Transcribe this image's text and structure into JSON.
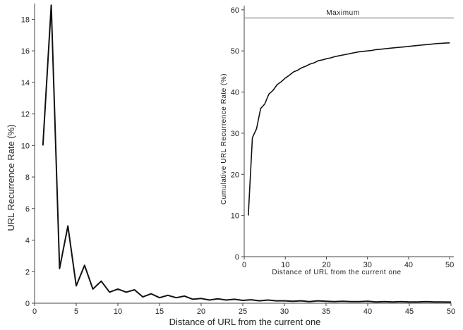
{
  "chart_data": [
    {
      "type": "line",
      "xlabel": "Distance of URL from the current one",
      "ylabel": "URL Recurrence Rate (%)",
      "xlim": [
        0,
        50
      ],
      "ylim": [
        0,
        19
      ],
      "xticks": [
        0,
        5,
        10,
        15,
        20,
        25,
        30,
        35,
        40,
        45,
        50
      ],
      "yticks": [
        0,
        2,
        4,
        6,
        8,
        10,
        12,
        14,
        16,
        18
      ],
      "grid": false,
      "series": [
        {
          "x": [
            1,
            2,
            3,
            4,
            5,
            6,
            7,
            8,
            9,
            10,
            11,
            12,
            13,
            14,
            15,
            16,
            17,
            18,
            19,
            20,
            21,
            22,
            23,
            24,
            25,
            26,
            27,
            28,
            29,
            30,
            31,
            32,
            33,
            34,
            35,
            36,
            37,
            38,
            39,
            40,
            41,
            42,
            43,
            44,
            45,
            46,
            47,
            48,
            49,
            50
          ],
          "values": [
            10.0,
            18.9,
            2.2,
            4.9,
            1.1,
            2.4,
            0.9,
            1.4,
            0.7,
            0.9,
            0.7,
            0.85,
            0.4,
            0.6,
            0.35,
            0.5,
            0.35,
            0.45,
            0.25,
            0.3,
            0.2,
            0.28,
            0.2,
            0.25,
            0.18,
            0.22,
            0.15,
            0.2,
            0.15,
            0.15,
            0.12,
            0.15,
            0.1,
            0.15,
            0.12,
            0.1,
            0.12,
            0.1,
            0.1,
            0.12,
            0.08,
            0.1,
            0.08,
            0.1,
            0.08,
            0.08,
            0.1,
            0.08,
            0.08,
            0.07
          ]
        }
      ]
    },
    {
      "type": "line",
      "xlabel": "Distance of URL from the current one",
      "ylabel": "Cumulative URL Recurrence Rate (%)",
      "xlim": [
        0,
        51
      ],
      "ylim": [
        0,
        61
      ],
      "xticks": [
        0,
        10,
        20,
        30,
        40,
        50
      ],
      "yticks": [
        0,
        10,
        20,
        30,
        40,
        50,
        60
      ],
      "grid": false,
      "reference_lines": [
        {
          "label": "Maximum",
          "y": 58
        }
      ],
      "series": [
        {
          "x": [
            1,
            2,
            3,
            4,
            5,
            6,
            7,
            8,
            9,
            10,
            11,
            12,
            13,
            14,
            15,
            16,
            17,
            18,
            19,
            20,
            21,
            22,
            23,
            24,
            25,
            26,
            27,
            28,
            29,
            30,
            31,
            32,
            33,
            34,
            35,
            36,
            37,
            38,
            39,
            40,
            41,
            42,
            43,
            44,
            45,
            46,
            47,
            48,
            49,
            50
          ],
          "values": [
            10.0,
            28.9,
            31.1,
            36.0,
            37.1,
            39.5,
            40.4,
            41.8,
            42.5,
            43.4,
            44.1,
            44.9,
            45.3,
            45.9,
            46.3,
            46.8,
            47.1,
            47.6,
            47.8,
            48.1,
            48.3,
            48.6,
            48.8,
            49.0,
            49.2,
            49.4,
            49.6,
            49.8,
            49.9,
            50.0,
            50.1,
            50.3,
            50.4,
            50.5,
            50.6,
            50.7,
            50.8,
            50.9,
            51.0,
            51.1,
            51.2,
            51.3,
            51.4,
            51.5,
            51.6,
            51.7,
            51.8,
            51.85,
            51.9,
            51.95
          ]
        }
      ]
    }
  ]
}
